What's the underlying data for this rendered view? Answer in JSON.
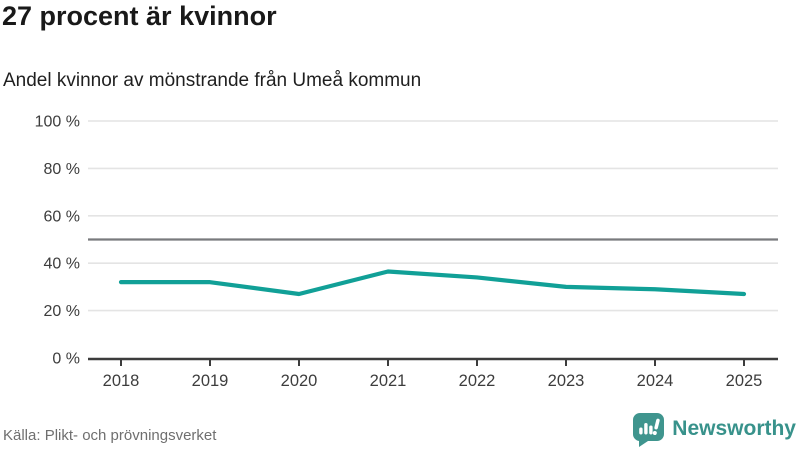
{
  "header": {
    "title": "27 procent är kvinnor",
    "subtitle": "Andel kvinnor av mönstrande från Umeå kommun"
  },
  "chart_data": {
    "type": "line",
    "title": "27 procent är kvinnor",
    "subtitle": "Andel kvinnor av mönstrande från Umeå kommun",
    "categories": [
      "2018",
      "2019",
      "2020",
      "2021",
      "2022",
      "2023",
      "2024",
      "2025"
    ],
    "series": [
      {
        "name": "Andel kvinnor av mönstrande",
        "values": [
          32,
          32,
          27,
          36.5,
          34,
          30,
          29,
          27
        ]
      }
    ],
    "xlabel": "",
    "ylabel": "",
    "ylim": [
      0,
      100
    ],
    "yticks": [
      {
        "value": 100,
        "label": "100 %"
      },
      {
        "value": 80,
        "label": "80 %"
      },
      {
        "value": 60,
        "label": "60 %"
      },
      {
        "value": 40,
        "label": "40 %"
      },
      {
        "value": 20,
        "label": "20 %"
      },
      {
        "value": 0,
        "label": "0 %"
      }
    ],
    "reference_line": {
      "value": 50
    },
    "grid": true,
    "legend_position": "none",
    "line_color": "#11a097"
  },
  "footer": {
    "source": "Källa: Plikt- och prövningsverket",
    "brand": "Newsworthy"
  },
  "colors": {
    "accent_teal": "#11a097",
    "brand_teal": "#3f958e",
    "brand_text_teal": "#38928b",
    "grid": "#e4e4e4",
    "reference_line": "#797a7d",
    "axis": "#3c3c3c",
    "tick_label": "#3d3d3d",
    "text_dark": "#191919",
    "text_muted": "#6f6f6f",
    "background": "#ffffff"
  }
}
